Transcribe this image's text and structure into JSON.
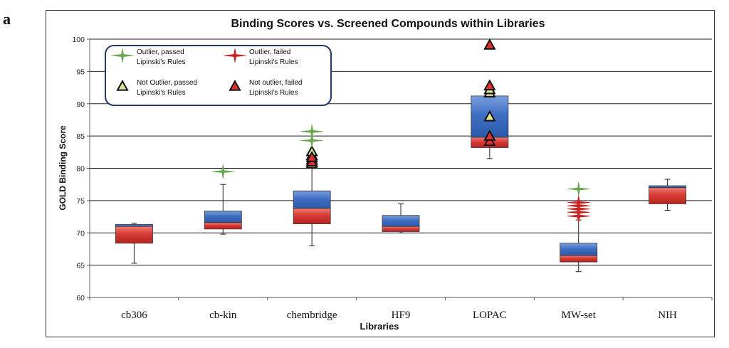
{
  "panel_label": "a",
  "chart_data": {
    "type": "box",
    "title": "Binding Scores vs. Screened Compounds within Libraries",
    "xlabel": "Libraries",
    "ylabel": "GOLD Binding Score",
    "ylim": [
      60,
      100
    ],
    "yticks": [
      60,
      65,
      70,
      75,
      80,
      85,
      90,
      95,
      100
    ],
    "grid": true,
    "colors": {
      "upper_box": "#3f6fc4",
      "lower_box": "#d93a36",
      "pass_star": "#6aa84f",
      "fail_star": "#cc2222",
      "pass_triangle": "#d6e79a",
      "fail_triangle": "#e03030"
    },
    "legend": {
      "placement": "top-left",
      "entries": [
        {
          "label_line1": "Outlier, passed",
          "label_line2": "Lipinski's Rules",
          "marker": "star-pass"
        },
        {
          "label_line1": "Outlier, failed",
          "label_line2": "Lipinski's Rules",
          "marker": "star-fail"
        },
        {
          "label_line1": "Not Outlier, passed",
          "label_line2": "Lipinski's Rules",
          "marker": "triangle-pass"
        },
        {
          "label_line1": "Not outlier, failed",
          "label_line2": "Lipinski's Rules",
          "marker": "triangle-fail"
        }
      ]
    },
    "categories": [
      "cb306",
      "cb-kin",
      "chembridge",
      "HF9",
      "LOPAC",
      "MW-set",
      "NIH"
    ],
    "boxes": [
      {
        "min": 65.3,
        "q1": 68.4,
        "median": 71.0,
        "q3": 71.3,
        "max": 71.5
      },
      {
        "min": 69.8,
        "q1": 70.6,
        "median": 71.6,
        "q3": 73.4,
        "max": 77.5
      },
      {
        "min": 68.0,
        "q1": 71.4,
        "median": 73.8,
        "q3": 76.5,
        "max": 80.5
      },
      {
        "min": 70.0,
        "q1": 70.2,
        "median": 71.0,
        "q3": 72.7,
        "max": 74.5
      },
      {
        "min": 81.5,
        "q1": 83.2,
        "median": 84.8,
        "q3": 91.2,
        "max": 91.3
      },
      {
        "min": 64.0,
        "q1": 65.5,
        "median": 66.5,
        "q3": 68.4,
        "max": 72.0
      },
      {
        "min": 73.5,
        "q1": 74.5,
        "median": 77.0,
        "q3": 77.3,
        "max": 78.3
      }
    ],
    "outliers_passed": [
      {
        "category": "cb-kin",
        "values": [
          79.5
        ]
      },
      {
        "category": "chembridge",
        "values": [
          84.3,
          85.7
        ]
      },
      {
        "category": "MW-set",
        "values": [
          76.8
        ]
      }
    ],
    "outliers_failed": [
      {
        "category": "MW-set",
        "values": [
          72.6,
          73.2,
          73.7,
          74.2,
          74.7
        ]
      }
    ],
    "points_not_outlier_passed": [
      {
        "category": "chembridge",
        "values": [
          80.7,
          81.3,
          82.0,
          82.6
        ]
      },
      {
        "category": "LOPAC",
        "values": [
          88.0,
          91.7,
          92.2
        ]
      }
    ],
    "points_not_outlier_failed": [
      {
        "category": "chembridge",
        "values": [
          81.0,
          81.7
        ]
      },
      {
        "category": "LOPAC",
        "values": [
          84.2,
          85.0,
          92.8,
          99.1
        ]
      }
    ]
  }
}
